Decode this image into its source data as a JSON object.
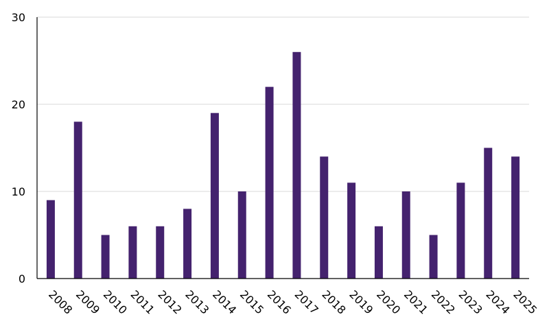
{
  "chart_data": {
    "type": "bar",
    "title": "",
    "xlabel": "",
    "ylabel": "",
    "categories": [
      "2008",
      "2009",
      "2010",
      "2011",
      "2012",
      "2013",
      "2014",
      "2015",
      "2016",
      "2017",
      "2018",
      "2019",
      "2020",
      "2021",
      "2022",
      "2023",
      "2024",
      "2025"
    ],
    "series": [
      {
        "values": [
          9,
          18,
          5,
          6,
          6,
          8,
          19,
          10,
          22,
          26,
          14,
          11,
          6,
          10,
          5,
          11,
          15,
          14
        ]
      }
    ],
    "ylim": [
      0,
      30
    ],
    "yticks": [
      0,
      10,
      20,
      30
    ],
    "grid": true,
    "legend": "none",
    "bar_color": "#44226e",
    "grid_color": "#d9d9d9",
    "axis_color": "#000000"
  }
}
